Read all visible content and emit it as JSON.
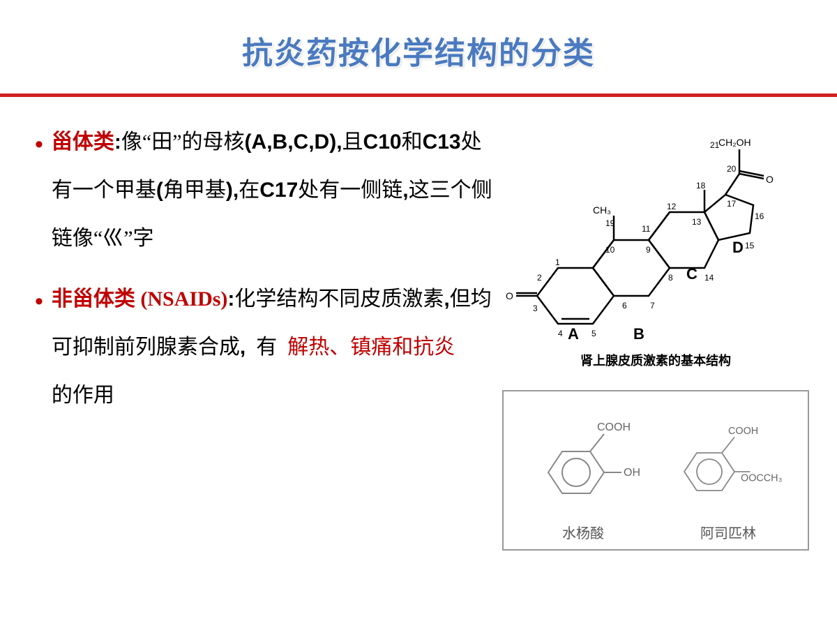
{
  "title": "抗炎药按化学结构的分类",
  "bullets": [
    {
      "term": "甾体类",
      "colon": ":",
      "body_parts": [
        {
          "t": "kai",
          "v": "像“田”的母核"
        },
        {
          "t": "bold",
          "v": "(A,B,C,D),"
        },
        {
          "t": "kai",
          "v": "且"
        },
        {
          "t": "bold",
          "v": "C10"
        },
        {
          "t": "kai",
          "v": "和"
        },
        {
          "t": "bold",
          "v": "C13"
        },
        {
          "t": "kai",
          "v": "处有一个甲基"
        },
        {
          "t": "bold",
          "v": "("
        },
        {
          "t": "kai",
          "v": "角甲基"
        },
        {
          "t": "bold",
          "v": "),"
        },
        {
          "t": "kai",
          "v": "在"
        },
        {
          "t": "bold",
          "v": "C17"
        },
        {
          "t": "kai",
          "v": "处有一侧链"
        },
        {
          "t": "bold",
          "v": ","
        },
        {
          "t": "kai",
          "v": "这三个侧链像“巛”字"
        }
      ]
    },
    {
      "term": "非甾体类 (NSAIDs)",
      "colon": ":",
      "body_parts": [
        {
          "t": "kai",
          "v": "化学结构不同皮质激素"
        },
        {
          "t": "bold",
          "v": ","
        },
        {
          "t": "kai",
          "v": "但均可抑制前列腺素合成"
        },
        {
          "t": "bold",
          "v": ","
        },
        {
          "t": "kai",
          "v": "  有  "
        },
        {
          "t": "red",
          "v": "解热、镇痛和抗炎"
        },
        {
          "t": "br",
          "v": ""
        },
        {
          "t": "kai",
          "v": "的作用"
        }
      ]
    }
  ],
  "steroid": {
    "caption": "肾上腺皮质激素的基本结构",
    "ring_labels": [
      "A",
      "B",
      "C",
      "D"
    ],
    "atom_labels": [
      "1",
      "2",
      "3",
      "4",
      "5",
      "6",
      "7",
      "8",
      "9",
      "10",
      "11",
      "12",
      "13",
      "14",
      "15",
      "16",
      "17",
      "18",
      "19",
      "20",
      "21"
    ],
    "groups": [
      "CH₂OH",
      "CH₃",
      "O",
      "O"
    ]
  },
  "nsaid": {
    "mol1": {
      "groups": [
        "COOH",
        "OH"
      ],
      "label": "水杨酸"
    },
    "mol2": {
      "groups": [
        "COOH",
        "OOCCH₃"
      ],
      "label": "阿司匹林"
    }
  },
  "colors": {
    "title": "#4a7ac0",
    "divider": "#d02020",
    "red_text": "#c00000",
    "black": "#000000",
    "grey": "#888888"
  }
}
